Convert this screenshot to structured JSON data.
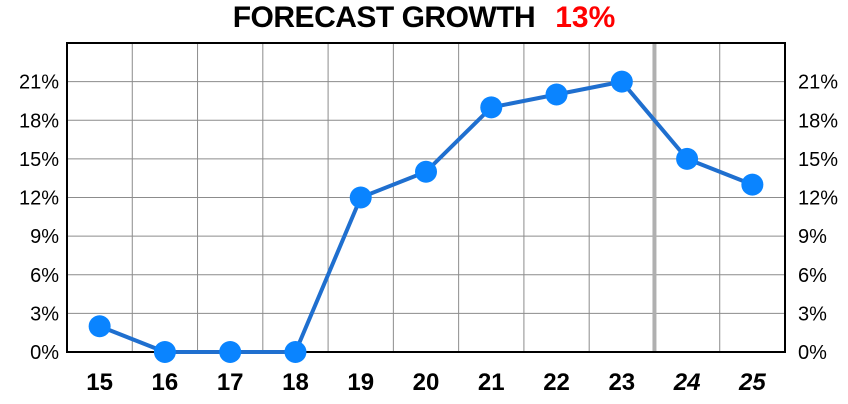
{
  "title": "FORECAST GROWTH",
  "title_value": "13%",
  "colors": {
    "line": "#1f6fcf",
    "point": "#0a84ff",
    "grid": "#8c8c8c",
    "frame": "#000000",
    "forecast_divider": "#b0b0b0",
    "title_value": "#ff0000"
  },
  "chart_data": {
    "type": "line",
    "title": "FORECAST GROWTH",
    "categories": [
      "15",
      "16",
      "17",
      "18",
      "19",
      "20",
      "21",
      "22",
      "23",
      "24",
      "25"
    ],
    "forecast_categories": [
      "24",
      "25"
    ],
    "series": [
      {
        "values": [
          2,
          0,
          0,
          0,
          12,
          14,
          19,
          20,
          21,
          15,
          13
        ]
      }
    ],
    "ylim": [
      0,
      24
    ],
    "y_ticks": [
      0,
      3,
      6,
      9,
      12,
      15,
      18,
      21
    ],
    "y_tick_labels": [
      "0%",
      "3%",
      "6%",
      "9%",
      "12%",
      "15%",
      "18%",
      "21%"
    ],
    "y_axis_both_sides": true,
    "grid": true,
    "xlabel": "",
    "ylabel": ""
  }
}
